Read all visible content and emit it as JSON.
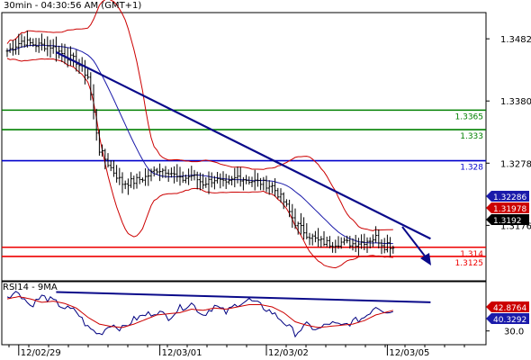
{
  "header": {
    "title": "30min - 04:30:56 AM (GMT+1)"
  },
  "indicator_label": "RSI14 - 9MA",
  "colors": {
    "price": "#000000",
    "bollinger": "#cc0000",
    "ma": "#1a1aaa",
    "trendline": "#0a0a8a",
    "green_level": "#008000",
    "blue_level": "#0000cc",
    "red_level": "#ee0000",
    "rsi": "#000080",
    "rsi_ma": "#cc0000",
    "badge_blue": "#1a1aaa",
    "badge_red": "#cc0000",
    "badge_black": "#000000"
  },
  "chart_data": [
    {
      "type": "candlestick",
      "title": "30min - 04:30:56 AM (GMT+1)",
      "y_ticks": [
        "1.3482",
        "1.3380",
        "1.3278",
        "1.3176"
      ],
      "ylim": [
        1.3085,
        1.3525
      ],
      "x_ticks": [
        "12/02/29",
        "12/03/01",
        "12/03/02",
        "12/03/05"
      ],
      "close_path": [
        [
          0,
          1.3462
        ],
        [
          5,
          1.3478
        ],
        [
          10,
          1.3472
        ],
        [
          15,
          1.347
        ],
        [
          20,
          1.3455
        ],
        [
          24,
          1.3445
        ],
        [
          28,
          1.342
        ],
        [
          32,
          1.33
        ],
        [
          36,
          1.327
        ],
        [
          40,
          1.3245
        ],
        [
          44,
          1.3248
        ],
        [
          48,
          1.3255
        ],
        [
          52,
          1.3268
        ],
        [
          56,
          1.3266
        ],
        [
          60,
          1.325
        ],
        [
          64,
          1.3258
        ],
        [
          68,
          1.3245
        ],
        [
          72,
          1.3252
        ],
        [
          76,
          1.3242
        ],
        [
          80,
          1.3256
        ],
        [
          84,
          1.325
        ],
        [
          88,
          1.3246
        ],
        [
          92,
          1.324
        ],
        [
          96,
          1.3215
        ],
        [
          100,
          1.318
        ],
        [
          104,
          1.3162
        ],
        [
          108,
          1.315
        ],
        [
          112,
          1.3146
        ],
        [
          116,
          1.3148
        ],
        [
          120,
          1.3146
        ],
        [
          124,
          1.315
        ],
        [
          128,
          1.3156
        ],
        [
          131,
          1.3142
        ],
        [
          132,
          1.3146
        ],
        [
          134,
          1.314
        ]
      ],
      "levels": [
        {
          "value": 1.3365,
          "label": "1.3365",
          "color": "#008000"
        },
        {
          "value": 1.3333,
          "label": "1.333",
          "color": "#008000"
        },
        {
          "value": 1.3282,
          "label": "1.328",
          "color": "#0000cc"
        },
        {
          "value": 1.314,
          "label": "1.314",
          "color": "#ee0000"
        },
        {
          "value": 1.3125,
          "label": "1.3125",
          "color": "#ee0000"
        }
      ],
      "trendline": [
        [
          17,
          1.346
        ],
        [
          147,
          1.3154
        ]
      ],
      "annotations": [
        {
          "value": "1.32286",
          "color": "#1a1aaa"
        },
        {
          "value": "1.31978",
          "color": "#cc0000"
        },
        {
          "value": "1.3192",
          "color": "#000000"
        }
      ]
    },
    {
      "type": "line",
      "title": "RSI14 - 9MA",
      "ylim": [
        18,
        73
      ],
      "y_ticks": [
        "30.0"
      ],
      "series": [
        {
          "name": "RSI14",
          "values": [
            [
              0,
              61
            ],
            [
              4,
              64
            ],
            [
              8,
              52
            ],
            [
              12,
              60
            ],
            [
              16,
              56
            ],
            [
              20,
              50
            ],
            [
              24,
              47
            ],
            [
              28,
              33
            ],
            [
              32,
              27
            ],
            [
              36,
              36
            ],
            [
              40,
              32
            ],
            [
              44,
              40
            ],
            [
              48,
              44
            ],
            [
              52,
              47
            ],
            [
              56,
              42
            ],
            [
              60,
              50
            ],
            [
              64,
              54
            ],
            [
              68,
              44
            ],
            [
              72,
              52
            ],
            [
              76,
              46
            ],
            [
              80,
              54
            ],
            [
              84,
              57
            ],
            [
              88,
              52
            ],
            [
              92,
              46
            ],
            [
              96,
              38
            ],
            [
              100,
              28
            ],
            [
              104,
              35
            ],
            [
              108,
              31
            ],
            [
              112,
              37
            ],
            [
              116,
              34
            ],
            [
              120,
              38
            ],
            [
              124,
              42
            ],
            [
              128,
              52
            ],
            [
              131,
              48
            ],
            [
              134,
              47
            ]
          ]
        },
        {
          "name": "9MA",
          "values": [
            [
              0,
              58
            ],
            [
              4,
              60
            ],
            [
              8,
              58
            ],
            [
              12,
              55
            ],
            [
              16,
              56
            ],
            [
              20,
              54
            ],
            [
              24,
              50
            ],
            [
              28,
              42
            ],
            [
              32,
              36
            ],
            [
              36,
              34
            ],
            [
              40,
              33
            ],
            [
              44,
              36
            ],
            [
              48,
              40
            ],
            [
              52,
              44
            ],
            [
              56,
              45
            ],
            [
              60,
              46
            ],
            [
              64,
              49
            ],
            [
              68,
              48
            ],
            [
              72,
              50
            ],
            [
              76,
              49
            ],
            [
              80,
              51
            ],
            [
              84,
              53
            ],
            [
              88,
              53
            ],
            [
              92,
              51
            ],
            [
              96,
              46
            ],
            [
              100,
              38
            ],
            [
              104,
              35
            ],
            [
              108,
              33
            ],
            [
              112,
              34
            ],
            [
              116,
              35
            ],
            [
              120,
              36
            ],
            [
              124,
              39
            ],
            [
              128,
              44
            ],
            [
              131,
              46
            ],
            [
              134,
              48
            ]
          ]
        }
      ],
      "trendline": [
        [
          17,
          64
        ],
        [
          147,
          55
        ]
      ],
      "annotations": [
        {
          "value": "42.8764",
          "color": "#cc0000"
        },
        {
          "value": "40.3292",
          "color": "#1a1aaa"
        }
      ]
    }
  ]
}
